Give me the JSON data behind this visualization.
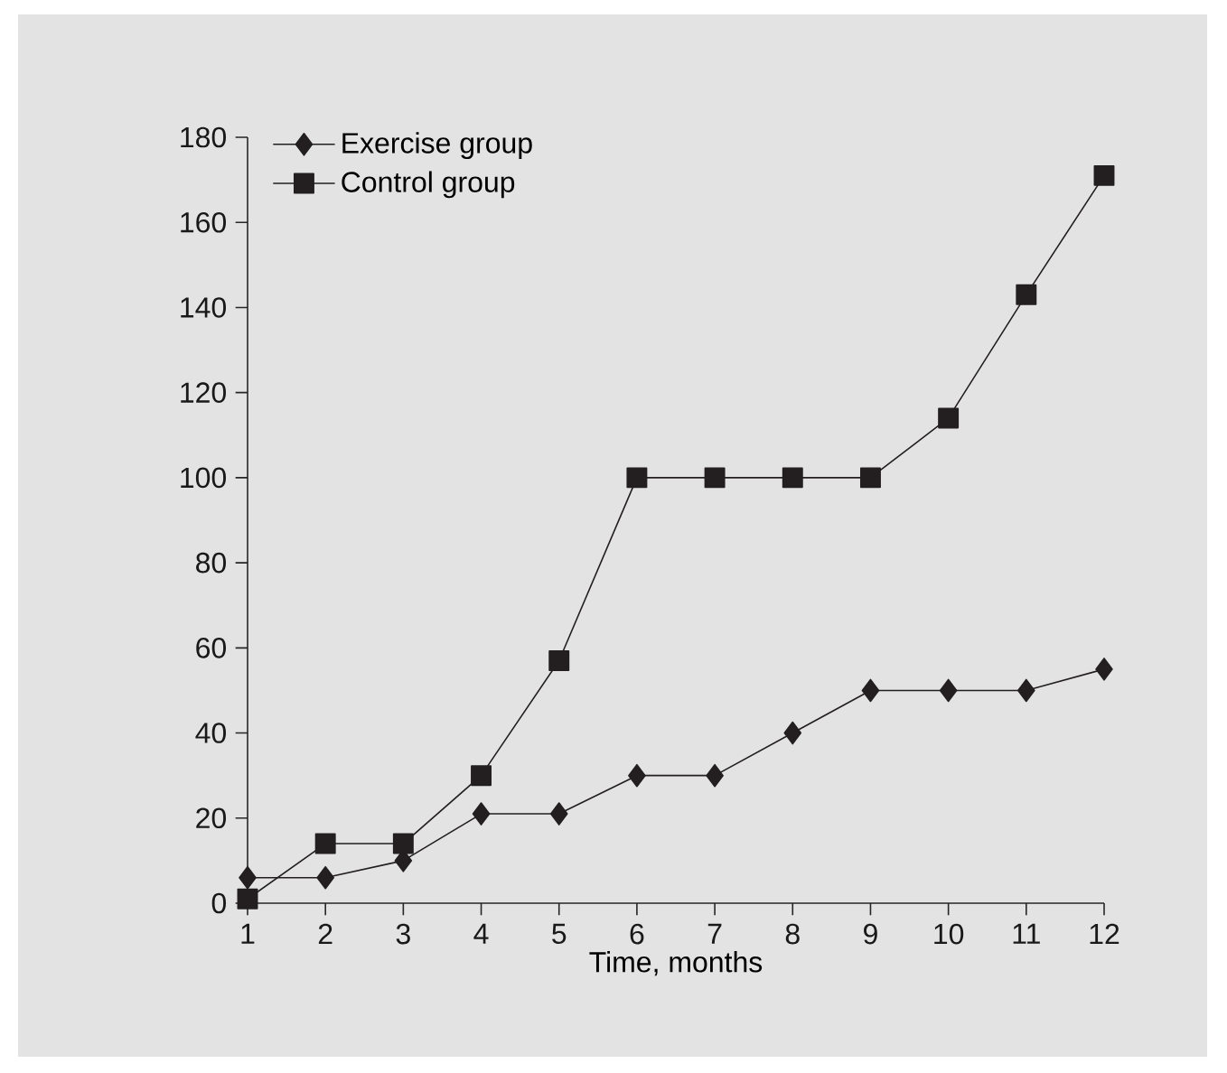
{
  "chart_data": {
    "type": "line",
    "xlabel": "Time, months",
    "x": [
      1,
      2,
      3,
      4,
      5,
      6,
      7,
      8,
      9,
      10,
      11,
      12
    ],
    "xlim": [
      1,
      12
    ],
    "xticks": [
      1,
      2,
      3,
      4,
      5,
      6,
      7,
      8,
      9,
      10,
      11,
      12
    ],
    "ylim": [
      0,
      180
    ],
    "yticks": [
      0,
      20,
      40,
      60,
      80,
      100,
      120,
      140,
      160,
      180
    ],
    "grid": false,
    "legend": "top left",
    "line_style": "solid",
    "series": [
      {
        "name": "Exercise group",
        "color": "#231f20",
        "marker": "diamond",
        "values": [
          6,
          6,
          10,
          21,
          21,
          30,
          30,
          40,
          50,
          50,
          50,
          55
        ]
      },
      {
        "name": "Control group",
        "color": "#231f20",
        "marker": "square",
        "values": [
          1,
          14,
          14,
          30,
          57,
          100,
          100,
          100,
          100,
          114,
          143,
          171
        ]
      }
    ]
  }
}
